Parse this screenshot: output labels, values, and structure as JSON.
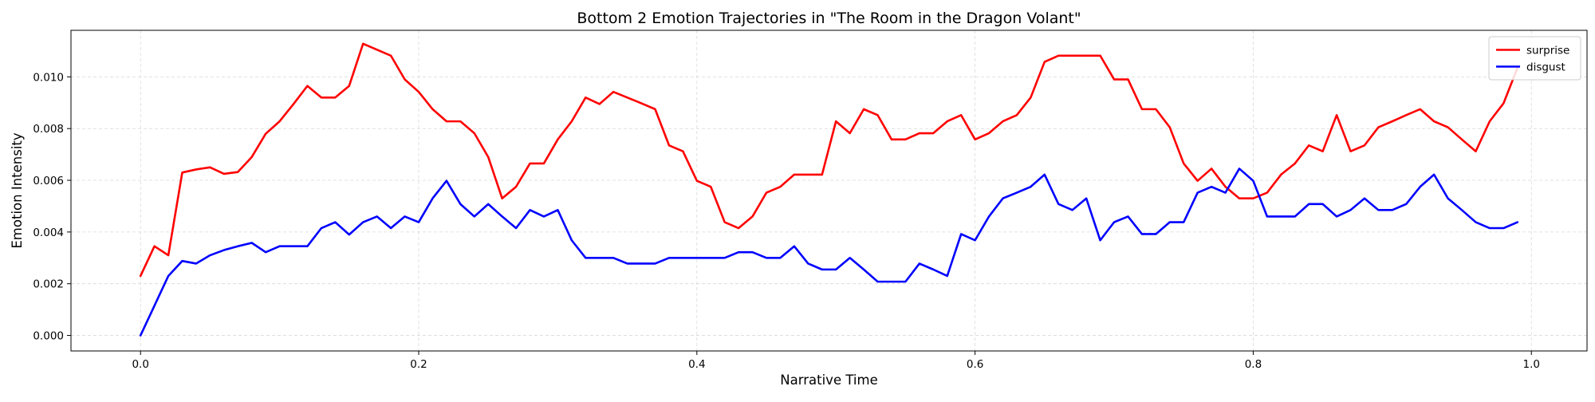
{
  "chart_data": {
    "type": "line",
    "title": "Bottom 2 Emotion Trajectories in \"The Room in the Dragon Volant\"",
    "xlabel": "Narrative Time",
    "ylabel": "Emotion Intensity",
    "xlim": [
      -0.05,
      1.04
    ],
    "ylim": [
      -0.0006,
      0.0118
    ],
    "xticks": [
      0.0,
      0.2,
      0.4,
      0.6,
      0.8,
      1.0
    ],
    "xtick_labels": [
      "0.0",
      "0.2",
      "0.4",
      "0.6",
      "0.8",
      "1.0"
    ],
    "yticks": [
      0.0,
      0.002,
      0.004,
      0.006,
      0.008,
      0.01
    ],
    "ytick_labels": [
      "0.000",
      "0.002",
      "0.004",
      "0.006",
      "0.008",
      "0.010"
    ],
    "grid": true,
    "legend_position": "top-right",
    "series": [
      {
        "name": "surprise",
        "color": "#ff0000",
        "points": [
          [
            0.0,
            0.0023
          ],
          [
            0.01,
            0.00345
          ],
          [
            0.02,
            0.0031
          ],
          [
            0.03,
            0.0063
          ],
          [
            0.04,
            0.00642
          ],
          [
            0.05,
            0.0065
          ],
          [
            0.06,
            0.00625
          ],
          [
            0.07,
            0.00632
          ],
          [
            0.08,
            0.0069
          ],
          [
            0.09,
            0.0078
          ],
          [
            0.1,
            0.00828
          ],
          [
            0.11,
            0.00895
          ],
          [
            0.12,
            0.00965
          ],
          [
            0.13,
            0.0092
          ],
          [
            0.14,
            0.0092
          ],
          [
            0.15,
            0.00965
          ],
          [
            0.16,
            0.01128
          ],
          [
            0.17,
            0.01105
          ],
          [
            0.18,
            0.01082
          ],
          [
            0.19,
            0.0099
          ],
          [
            0.2,
            0.00942
          ],
          [
            0.21,
            0.00875
          ],
          [
            0.22,
            0.00828
          ],
          [
            0.23,
            0.00828
          ],
          [
            0.24,
            0.00782
          ],
          [
            0.25,
            0.0069
          ],
          [
            0.26,
            0.0053
          ],
          [
            0.27,
            0.00575
          ],
          [
            0.28,
            0.00665
          ],
          [
            0.29,
            0.00665
          ],
          [
            0.3,
            0.00758
          ],
          [
            0.31,
            0.00828
          ],
          [
            0.32,
            0.0092
          ],
          [
            0.33,
            0.00895
          ],
          [
            0.34,
            0.00942
          ],
          [
            0.35,
            0.0092
          ],
          [
            0.36,
            0.00898
          ],
          [
            0.37,
            0.00875
          ],
          [
            0.38,
            0.00735
          ],
          [
            0.39,
            0.00712
          ],
          [
            0.4,
            0.00598
          ],
          [
            0.41,
            0.00575
          ],
          [
            0.42,
            0.00438
          ],
          [
            0.43,
            0.00415
          ],
          [
            0.44,
            0.0046
          ],
          [
            0.45,
            0.00552
          ],
          [
            0.46,
            0.00575
          ],
          [
            0.47,
            0.00622
          ],
          [
            0.48,
            0.00622
          ],
          [
            0.49,
            0.00622
          ],
          [
            0.5,
            0.00828
          ],
          [
            0.51,
            0.00782
          ],
          [
            0.52,
            0.00875
          ],
          [
            0.53,
            0.00852
          ],
          [
            0.54,
            0.00758
          ],
          [
            0.55,
            0.00758
          ],
          [
            0.56,
            0.00782
          ],
          [
            0.57,
            0.00782
          ],
          [
            0.58,
            0.00828
          ],
          [
            0.59,
            0.00852
          ],
          [
            0.6,
            0.00758
          ],
          [
            0.61,
            0.00782
          ],
          [
            0.62,
            0.00828
          ],
          [
            0.63,
            0.00852
          ],
          [
            0.64,
            0.0092
          ],
          [
            0.65,
            0.01058
          ],
          [
            0.66,
            0.01082
          ],
          [
            0.67,
            0.01082
          ],
          [
            0.68,
            0.01082
          ],
          [
            0.69,
            0.01082
          ],
          [
            0.7,
            0.0099
          ],
          [
            0.71,
            0.0099
          ],
          [
            0.72,
            0.00875
          ],
          [
            0.73,
            0.00875
          ],
          [
            0.74,
            0.00805
          ],
          [
            0.75,
            0.00665
          ],
          [
            0.76,
            0.00598
          ],
          [
            0.77,
            0.00645
          ],
          [
            0.78,
            0.00575
          ],
          [
            0.79,
            0.0053
          ],
          [
            0.8,
            0.0053
          ],
          [
            0.81,
            0.00552
          ],
          [
            0.82,
            0.00622
          ],
          [
            0.83,
            0.00665
          ],
          [
            0.84,
            0.00735
          ],
          [
            0.85,
            0.00712
          ],
          [
            0.86,
            0.00852
          ],
          [
            0.87,
            0.00712
          ],
          [
            0.88,
            0.00735
          ],
          [
            0.89,
            0.00805
          ],
          [
            0.9,
            0.00828
          ],
          [
            0.91,
            0.00852
          ],
          [
            0.92,
            0.00875
          ],
          [
            0.93,
            0.00828
          ],
          [
            0.94,
            0.00805
          ],
          [
            0.95,
            0.00758
          ],
          [
            0.96,
            0.00712
          ],
          [
            0.97,
            0.00828
          ],
          [
            0.98,
            0.00898
          ],
          [
            0.99,
            0.01035
          ]
        ]
      },
      {
        "name": "disgust",
        "color": "#0000ff",
        "points": [
          [
            0.0,
            0.0
          ],
          [
            0.01,
            0.00115
          ],
          [
            0.02,
            0.0023
          ],
          [
            0.03,
            0.00288
          ],
          [
            0.04,
            0.00278
          ],
          [
            0.05,
            0.0031
          ],
          [
            0.06,
            0.0033
          ],
          [
            0.07,
            0.00345
          ],
          [
            0.08,
            0.00358
          ],
          [
            0.09,
            0.00322
          ],
          [
            0.1,
            0.00345
          ],
          [
            0.11,
            0.00345
          ],
          [
            0.12,
            0.00345
          ],
          [
            0.13,
            0.00415
          ],
          [
            0.14,
            0.00438
          ],
          [
            0.15,
            0.0039
          ],
          [
            0.16,
            0.00438
          ],
          [
            0.17,
            0.0046
          ],
          [
            0.18,
            0.00415
          ],
          [
            0.19,
            0.0046
          ],
          [
            0.2,
            0.00438
          ],
          [
            0.21,
            0.0053
          ],
          [
            0.22,
            0.00598
          ],
          [
            0.23,
            0.00508
          ],
          [
            0.24,
            0.0046
          ],
          [
            0.25,
            0.00508
          ],
          [
            0.26,
            0.0046
          ],
          [
            0.27,
            0.00415
          ],
          [
            0.28,
            0.00485
          ],
          [
            0.29,
            0.0046
          ],
          [
            0.3,
            0.00485
          ],
          [
            0.31,
            0.00368
          ],
          [
            0.32,
            0.003
          ],
          [
            0.33,
            0.003
          ],
          [
            0.34,
            0.003
          ],
          [
            0.35,
            0.00278
          ],
          [
            0.36,
            0.00278
          ],
          [
            0.37,
            0.00278
          ],
          [
            0.38,
            0.003
          ],
          [
            0.39,
            0.003
          ],
          [
            0.4,
            0.003
          ],
          [
            0.41,
            0.003
          ],
          [
            0.42,
            0.003
          ],
          [
            0.43,
            0.00322
          ],
          [
            0.44,
            0.00322
          ],
          [
            0.45,
            0.003
          ],
          [
            0.46,
            0.003
          ],
          [
            0.47,
            0.00345
          ],
          [
            0.48,
            0.00278
          ],
          [
            0.49,
            0.00255
          ],
          [
            0.5,
            0.00255
          ],
          [
            0.51,
            0.003
          ],
          [
            0.52,
            0.00255
          ],
          [
            0.53,
            0.00208
          ],
          [
            0.54,
            0.00208
          ],
          [
            0.55,
            0.00208
          ],
          [
            0.56,
            0.00278
          ],
          [
            0.57,
            0.00255
          ],
          [
            0.58,
            0.0023
          ],
          [
            0.59,
            0.00392
          ],
          [
            0.6,
            0.00368
          ],
          [
            0.61,
            0.0046
          ],
          [
            0.62,
            0.0053
          ],
          [
            0.63,
            0.00552
          ],
          [
            0.64,
            0.00575
          ],
          [
            0.65,
            0.00622
          ],
          [
            0.66,
            0.00508
          ],
          [
            0.67,
            0.00485
          ],
          [
            0.68,
            0.0053
          ],
          [
            0.69,
            0.00368
          ],
          [
            0.7,
            0.00438
          ],
          [
            0.71,
            0.0046
          ],
          [
            0.72,
            0.00392
          ],
          [
            0.73,
            0.00392
          ],
          [
            0.74,
            0.00438
          ],
          [
            0.75,
            0.00438
          ],
          [
            0.76,
            0.00552
          ],
          [
            0.77,
            0.00575
          ],
          [
            0.78,
            0.00552
          ],
          [
            0.79,
            0.00645
          ],
          [
            0.8,
            0.00598
          ],
          [
            0.81,
            0.0046
          ],
          [
            0.82,
            0.0046
          ],
          [
            0.83,
            0.0046
          ],
          [
            0.84,
            0.00508
          ],
          [
            0.85,
            0.00508
          ],
          [
            0.86,
            0.0046
          ],
          [
            0.87,
            0.00485
          ],
          [
            0.88,
            0.0053
          ],
          [
            0.89,
            0.00485
          ],
          [
            0.9,
            0.00485
          ],
          [
            0.91,
            0.00508
          ],
          [
            0.92,
            0.00575
          ],
          [
            0.93,
            0.00622
          ],
          [
            0.94,
            0.0053
          ],
          [
            0.95,
            0.00485
          ],
          [
            0.96,
            0.00438
          ],
          [
            0.97,
            0.00415
          ],
          [
            0.98,
            0.00415
          ],
          [
            0.99,
            0.00438
          ]
        ]
      }
    ]
  }
}
